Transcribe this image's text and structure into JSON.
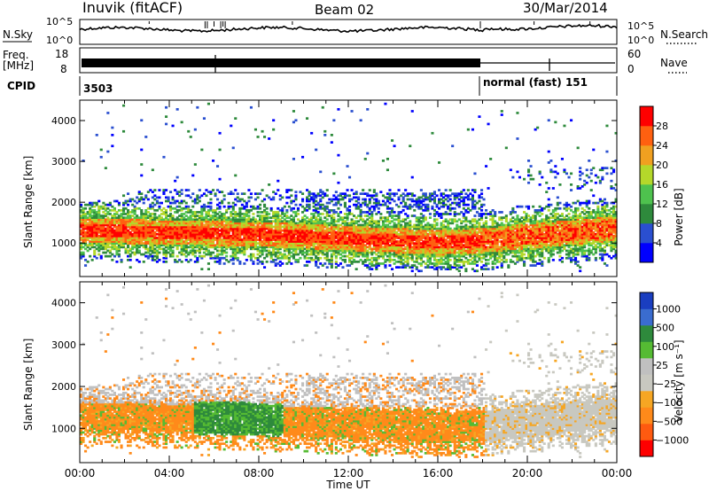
{
  "header": {
    "station": "Inuvik (fitACF)",
    "beam": "Beam 02",
    "date": "30/Mar/2014"
  },
  "strips": {
    "nsky_label": "N.Sky",
    "nsky_ticks": [
      "10^5",
      "10^0"
    ],
    "nsearch_label": "N.Search",
    "nsearch_ticks": [
      "10^5",
      "10^0"
    ],
    "freq_label": "Freq.",
    "freq_unit": "[MHz]",
    "freq_ticks": [
      "18",
      "8"
    ],
    "nave_label": "Nave",
    "nave_ticks": [
      "60",
      "0"
    ],
    "cpid_label": "CPID",
    "cpid_segments": [
      {
        "label": "3503",
        "start_hour": 0,
        "end_hour": 18
      },
      {
        "label": "normal (fast) 151",
        "start_hour": 18,
        "end_hour": 24
      }
    ]
  },
  "chart_data": [
    {
      "type": "heatmap",
      "name": "power",
      "ylabel": "Slant Range [km]",
      "yticks": [
        "4000",
        "3000",
        "2000",
        "1000"
      ],
      "ylim": [
        180,
        4500
      ],
      "xlim": [
        0,
        24
      ],
      "colorbar": {
        "label": "Power [dB]",
        "ticks": [
          "28",
          "24",
          "20",
          "16",
          "12",
          "8",
          "4"
        ],
        "colors": [
          "#0000ff",
          "#2a4fd0",
          "#2e8a3c",
          "#4ec24e",
          "#b4d82a",
          "#f0a020",
          "#ff6010",
          "#ff0000"
        ]
      },
      "main_band_km": [
        [
          0,
          1300
        ],
        [
          4,
          1250
        ],
        [
          8,
          1200
        ],
        [
          12,
          1100
        ],
        [
          16,
          1000
        ],
        [
          18,
          1050
        ],
        [
          20,
          1150
        ],
        [
          24,
          1350
        ]
      ]
    },
    {
      "type": "heatmap",
      "name": "velocity",
      "ylabel": "Slant Range [km]",
      "yticks": [
        "4000",
        "3000",
        "2000",
        "1000"
      ],
      "ylim": [
        180,
        4500
      ],
      "xlim": [
        0,
        24
      ],
      "colorbar": {
        "label": "Velocity [m s⁻¹]",
        "ticks": [
          "1000",
          "500",
          "100",
          "25",
          "−25",
          "−100",
          "−500",
          "−1000"
        ],
        "colors": [
          "#ff0000",
          "#ff5a10",
          "#ff8a1a",
          "#f6a623",
          "#c8c8c0",
          "#c0c0c0",
          "#55bb33",
          "#2e8a3c",
          "#3a6ccf",
          "#1a3ec0"
        ]
      }
    }
  ],
  "xaxis": {
    "ticks": [
      "00:00",
      "04:00",
      "08:00",
      "12:00",
      "16:00",
      "20:00",
      "00:00"
    ],
    "label": "Time UT"
  }
}
